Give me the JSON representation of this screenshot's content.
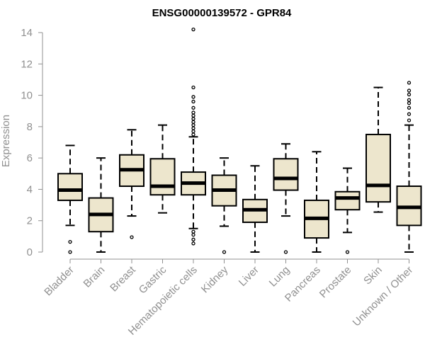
{
  "chart_data": {
    "type": "boxplot",
    "title": "ENSG00000139572 - GPR84",
    "ylabel": "Expression",
    "ylim": [
      0,
      14.5
    ],
    "yticks": [
      0,
      2,
      4,
      6,
      8,
      10,
      12,
      14
    ],
    "colors": {
      "box_fill": "#ede6cd",
      "axis": "#909090",
      "stroke": "#000000"
    },
    "categories": [
      "Bladder",
      "Brain",
      "Breast",
      "Gastric",
      "Hematopoietic cells",
      "Kidney",
      "Liver",
      "Lung",
      "Pancreas",
      "Prostate",
      "Skin",
      "Unknown / Other"
    ],
    "boxes": [
      {
        "q1": 3.3,
        "median": 3.95,
        "q3": 5.0,
        "whisker_low": 1.7,
        "whisker_high": 6.8,
        "outliers": [
          0.65,
          0.0
        ]
      },
      {
        "q1": 1.3,
        "median": 2.4,
        "q3": 3.45,
        "whisker_low": 0.0,
        "whisker_high": 6.0,
        "outliers": []
      },
      {
        "q1": 4.2,
        "median": 5.25,
        "q3": 6.2,
        "whisker_low": 2.3,
        "whisker_high": 7.8,
        "outliers": [
          0.95
        ]
      },
      {
        "q1": 3.65,
        "median": 4.2,
        "q3": 5.95,
        "whisker_low": 2.5,
        "whisker_high": 8.1,
        "outliers": []
      },
      {
        "q1": 3.65,
        "median": 4.4,
        "q3": 5.1,
        "whisker_low": 1.5,
        "whisker_high": 7.35,
        "outliers": [
          14.2,
          10.5,
          9.9,
          9.6,
          9.2,
          8.9,
          8.7,
          8.5,
          8.3,
          8.1,
          7.9,
          7.7,
          7.5,
          1.3,
          1.1,
          0.8,
          0.55
        ]
      },
      {
        "q1": 2.95,
        "median": 3.95,
        "q3": 4.9,
        "whisker_low": 1.65,
        "whisker_high": 6.0,
        "outliers": [
          0.0
        ]
      },
      {
        "q1": 1.9,
        "median": 2.7,
        "q3": 3.35,
        "whisker_low": 0.0,
        "whisker_high": 5.5,
        "outliers": []
      },
      {
        "q1": 3.95,
        "median": 4.7,
        "q3": 5.95,
        "whisker_low": 2.3,
        "whisker_high": 6.9,
        "outliers": [
          0.0
        ]
      },
      {
        "q1": 0.9,
        "median": 2.15,
        "q3": 3.3,
        "whisker_low": 0.0,
        "whisker_high": 6.4,
        "outliers": []
      },
      {
        "q1": 2.7,
        "median": 3.45,
        "q3": 3.85,
        "whisker_low": 1.25,
        "whisker_high": 5.35,
        "outliers": [
          0.0
        ]
      },
      {
        "q1": 3.2,
        "median": 4.25,
        "q3": 7.5,
        "whisker_low": 2.55,
        "whisker_high": 10.5,
        "outliers": []
      },
      {
        "q1": 1.7,
        "median": 2.85,
        "q3": 4.2,
        "whisker_low": 0.0,
        "whisker_high": 8.1,
        "outliers": [
          10.8,
          10.3,
          10.05,
          9.7,
          9.5,
          9.2,
          8.8,
          8.4
        ]
      }
    ]
  }
}
